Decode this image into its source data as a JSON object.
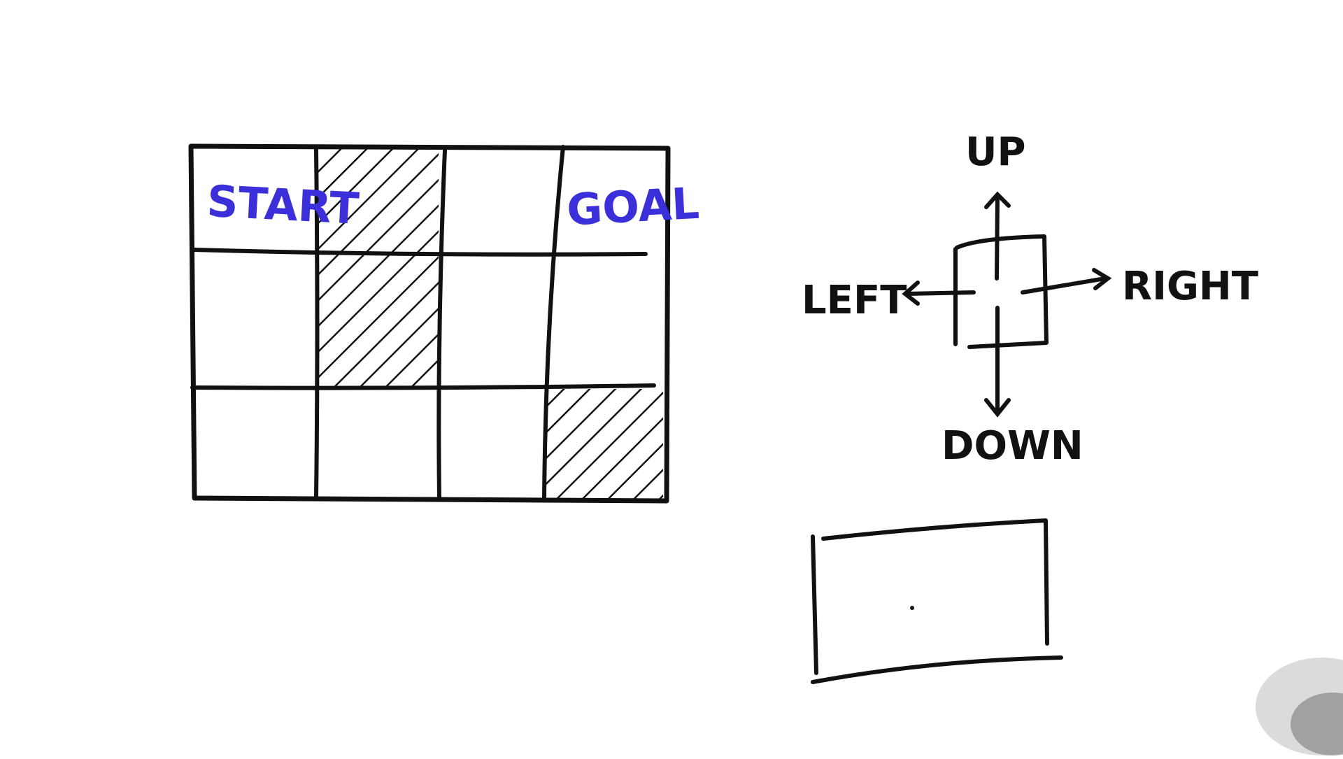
{
  "grid": {
    "rows": 3,
    "cols": 4,
    "blocked_cells": [
      [
        0,
        1
      ],
      [
        1,
        1
      ],
      [
        2,
        3
      ]
    ],
    "start_label": "START",
    "goal_label": "GOAL",
    "label_color": "#3a2fd8",
    "ink_color": "#111111"
  },
  "actions": {
    "up": "UP",
    "down": "DOWN",
    "left": "LEFT",
    "right": "RIGHT"
  }
}
